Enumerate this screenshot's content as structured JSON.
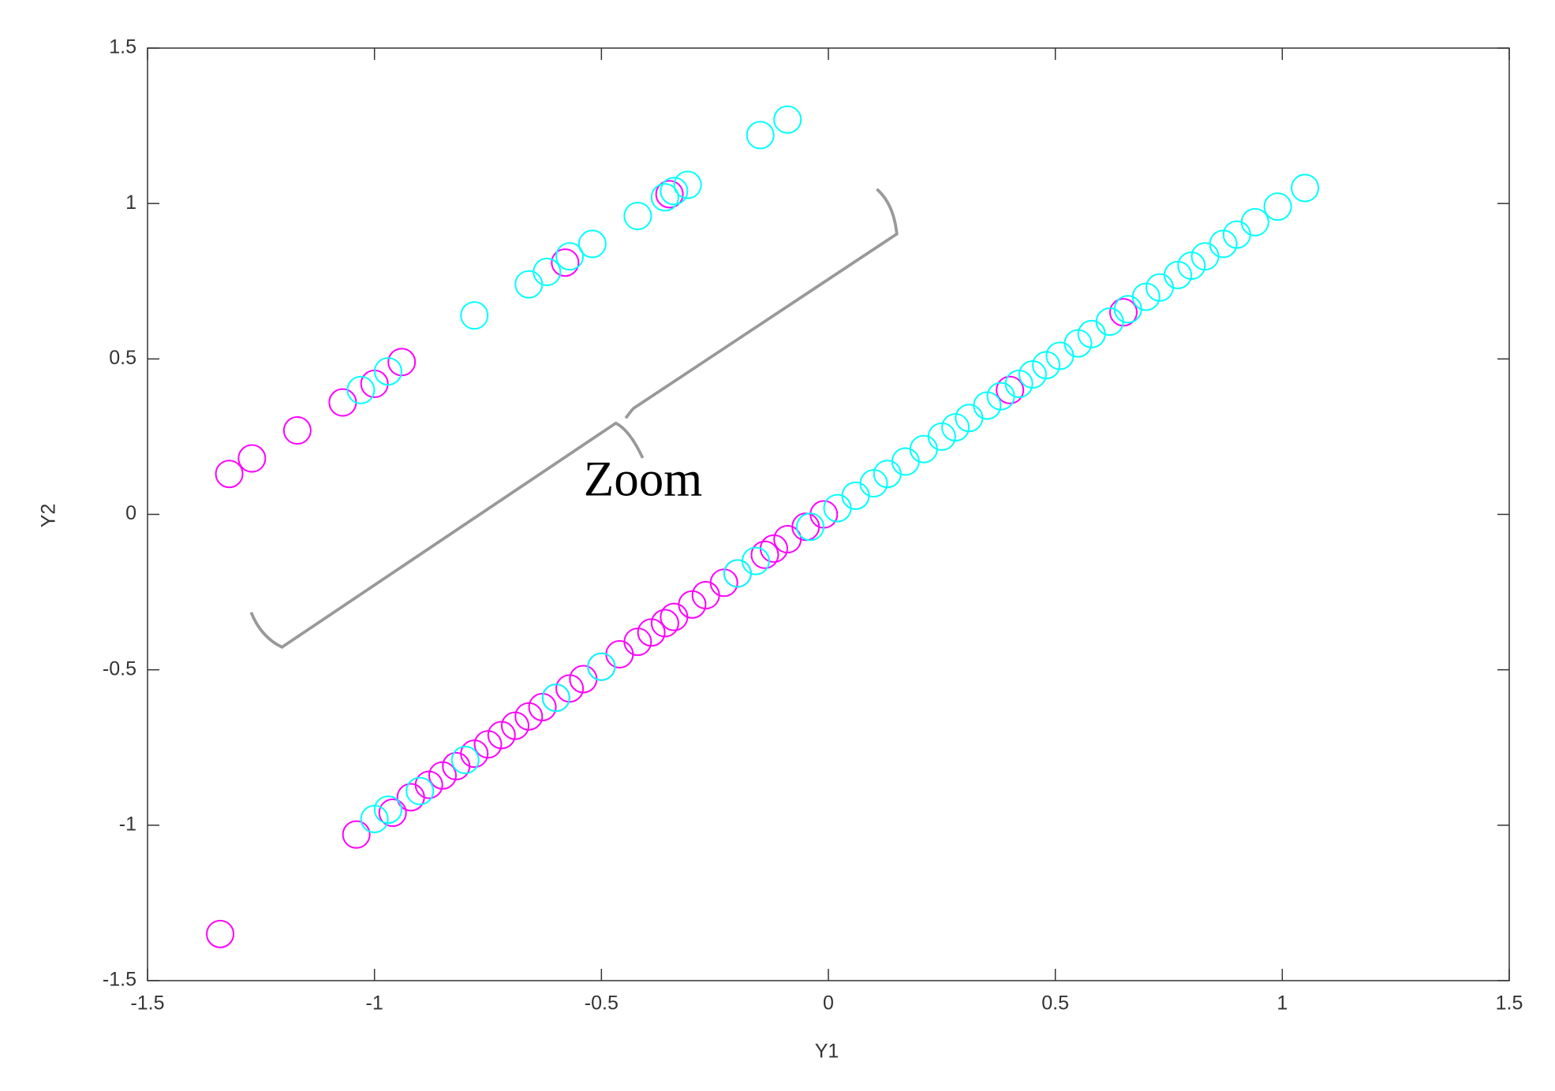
{
  "chart_data": {
    "type": "scatter",
    "xlabel": "Y1",
    "ylabel": "Y2",
    "annotation": "Zoom",
    "xlim": [
      -1.5,
      1.5
    ],
    "ylim": [
      -1.5,
      1.5
    ],
    "xticks": [
      -1.5,
      -1,
      -0.5,
      0,
      0.5,
      1,
      1.5
    ],
    "yticks": [
      -1.5,
      -1,
      -0.5,
      0,
      0.5,
      1,
      1.5
    ],
    "grid": false,
    "series": [
      {
        "color": "#ff00ff",
        "x": [
          -1.32,
          -1.27,
          -1.17,
          -1.07,
          -1.0,
          -0.94,
          -0.58,
          -0.35,
          -1.34,
          -1.04,
          -0.96,
          -0.92,
          -0.88,
          -0.85,
          -0.82,
          -0.78,
          -0.75,
          -0.72,
          -0.69,
          -0.66,
          -0.63,
          -0.6,
          -0.57,
          -0.54,
          -0.5,
          -0.46,
          -0.42,
          -0.39,
          -0.36,
          -0.34,
          -0.3,
          -0.27,
          -0.23,
          -0.2,
          -0.14,
          -0.12,
          -0.09,
          -0.05,
          -0.01,
          0.4,
          0.65
        ],
        "values": [
          0.13,
          0.18,
          0.27,
          0.36,
          0.42,
          0.49,
          0.81,
          1.03,
          -1.35,
          -1.03,
          -0.96,
          -0.91,
          -0.87,
          -0.84,
          -0.81,
          -0.77,
          -0.74,
          -0.71,
          -0.68,
          -0.65,
          -0.62,
          -0.59,
          -0.56,
          -0.53,
          -0.49,
          -0.45,
          -0.41,
          -0.38,
          -0.35,
          -0.33,
          -0.29,
          -0.26,
          -0.22,
          -0.19,
          -0.13,
          -0.11,
          -0.08,
          -0.04,
          0.0,
          0.4,
          0.65
        ]
      },
      {
        "color": "#00ffff",
        "x": [
          -1.03,
          -0.97,
          -0.78,
          -0.66,
          -0.62,
          -0.57,
          -0.52,
          -0.42,
          -0.36,
          -0.34,
          -0.31,
          -0.15,
          -0.09,
          -1.0,
          -0.97,
          -0.9,
          -0.8,
          -0.6,
          -0.5,
          -0.2,
          -0.16,
          -0.04,
          0.02,
          0.06,
          0.1,
          0.13,
          0.17,
          0.21,
          0.25,
          0.28,
          0.31,
          0.35,
          0.38,
          0.42,
          0.45,
          0.48,
          0.51,
          0.55,
          0.58,
          0.62,
          0.66,
          0.7,
          0.73,
          0.77,
          0.8,
          0.83,
          0.87,
          0.9,
          0.94,
          0.99,
          1.05
        ],
        "values": [
          0.4,
          0.46,
          0.64,
          0.74,
          0.78,
          0.83,
          0.87,
          0.96,
          1.02,
          1.04,
          1.06,
          1.22,
          1.27,
          -0.98,
          -0.95,
          -0.89,
          -0.79,
          -0.59,
          -0.49,
          -0.19,
          -0.15,
          -0.04,
          0.02,
          0.06,
          0.1,
          0.13,
          0.17,
          0.21,
          0.25,
          0.28,
          0.31,
          0.35,
          0.38,
          0.42,
          0.45,
          0.48,
          0.51,
          0.55,
          0.58,
          0.62,
          0.66,
          0.7,
          0.73,
          0.77,
          0.8,
          0.83,
          0.87,
          0.9,
          0.94,
          0.99,
          1.05
        ]
      }
    ]
  }
}
